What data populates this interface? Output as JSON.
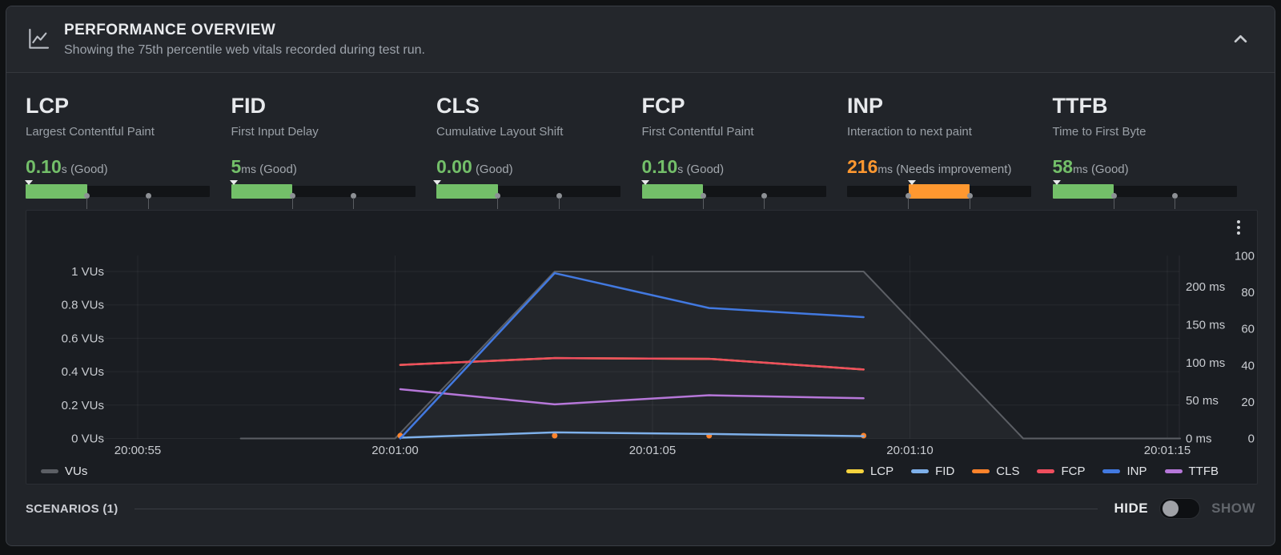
{
  "header": {
    "title": "PERFORMANCE OVERVIEW",
    "subtitle": "Showing the 75th percentile web vitals recorded during test run."
  },
  "colors": {
    "good": "#73bf69",
    "needs_improvement": "#ff9830",
    "vus_line": "#5c5f65",
    "vus_fill": "rgba(255,255,255,0.045)"
  },
  "metrics": [
    {
      "name": "LCP",
      "description": "Largest Contentful Paint",
      "value": "0.10",
      "unit": "s",
      "rating": "(Good)",
      "status": "good",
      "zone": 0,
      "marker_pct": 1.6,
      "ticks": [
        "2.50s",
        "4.00s"
      ]
    },
    {
      "name": "FID",
      "description": "First Input Delay",
      "value": "5",
      "unit": "ms",
      "rating": "(Good)",
      "status": "good",
      "zone": 0,
      "marker_pct": 1.7,
      "ticks": [
        "100ms",
        "300ms"
      ]
    },
    {
      "name": "CLS",
      "description": "Cumulative Layout Shift",
      "value": "0.00",
      "unit": "",
      "rating": "(Good)",
      "status": "good",
      "zone": 0,
      "marker_pct": 0.4,
      "ticks": [
        "0.10",
        "0.25"
      ]
    },
    {
      "name": "FCP",
      "description": "First Contentful Paint",
      "value": "0.10",
      "unit": "s",
      "rating": "(Good)",
      "status": "good",
      "zone": 0,
      "marker_pct": 1.9,
      "ticks": [
        "1.80s",
        "3.00s"
      ]
    },
    {
      "name": "INP",
      "description": "Interaction to next paint",
      "value": "216",
      "unit": "ms",
      "rating": "(Needs improvement)",
      "status": "needs_improvement",
      "zone": 1,
      "marker_pct": 35.1,
      "ticks": [
        "200ms",
        "500ms"
      ]
    },
    {
      "name": "TTFB",
      "description": "Time to First Byte",
      "value": "58",
      "unit": "ms",
      "rating": "(Good)",
      "status": "good",
      "zone": 0,
      "marker_pct": 2.4,
      "ticks": [
        "800ms",
        "1800ms"
      ]
    }
  ],
  "chart_data": {
    "type": "line",
    "x_axis": {
      "labels": [
        "20:00:55",
        "20:01:00",
        "20:01:05",
        "20:01:10",
        "20:01:15"
      ],
      "seconds": [
        55,
        60,
        65,
        70,
        75
      ]
    },
    "left_axis": {
      "title": "VUs",
      "ticks": [
        1,
        0.8,
        0.6,
        0.4,
        0.2,
        0
      ],
      "labels": [
        "1 VUs",
        "0.8 VUs",
        "0.6 VUs",
        "0.4 VUs",
        "0.2 VUs",
        "0 VUs"
      ]
    },
    "right_axis_ms": {
      "ticks": [
        200,
        150,
        100,
        50,
        0
      ],
      "labels": [
        "200 ms",
        "150 ms",
        "100 ms",
        "50 ms",
        "0 ms"
      ]
    },
    "right_axis_score": {
      "ticks": [
        100,
        80,
        60,
        40,
        20,
        0
      ],
      "labels": [
        "100",
        "80",
        "60",
        "40",
        "20",
        "0"
      ]
    },
    "series": [
      {
        "name": "VUs",
        "color": "#5c5f65",
        "axis": "vus",
        "style": "area",
        "x": [
          57,
          60,
          63.1,
          69.1,
          72.2,
          75.25
        ],
        "values": [
          0,
          0,
          1,
          1,
          0,
          0
        ]
      },
      {
        "name": "LCP",
        "color": "#f5d33e",
        "axis": "ms",
        "style": "line",
        "x": [
          60.1,
          63.1,
          66.1,
          69.1
        ],
        "values": [
          97,
          106,
          105,
          91
        ]
      },
      {
        "name": "CLS",
        "color": "#ff832b",
        "axis": "score",
        "style": "points",
        "x": [
          60.1,
          63.1,
          66.1,
          69.1
        ],
        "values": [
          0,
          0,
          0,
          0
        ]
      },
      {
        "name": "FCP",
        "color": "#ef4e5e",
        "axis": "ms",
        "style": "line",
        "x": [
          60.1,
          63.1,
          66.1,
          69.1
        ],
        "values": [
          97,
          106,
          105,
          91
        ]
      },
      {
        "name": "TTFB",
        "color": "#b677d9",
        "axis": "ms",
        "style": "line",
        "x": [
          60.1,
          63.1,
          66.1,
          69.1
        ],
        "values": [
          65,
          45,
          57,
          53
        ]
      },
      {
        "name": "FID",
        "color": "#7eb0ea",
        "axis": "ms",
        "style": "line",
        "x": [
          60.1,
          63.1,
          66.1,
          69.1
        ],
        "values": [
          1,
          8,
          6,
          3
        ]
      },
      {
        "name": "INP",
        "color": "#4279e0",
        "axis": "ms",
        "style": "line",
        "x": [
          60.1,
          63.1,
          66.1,
          69.1
        ],
        "values": [
          0,
          218,
          172,
          160
        ]
      }
    ],
    "legend_left": [
      "VUs"
    ],
    "legend_right": [
      "LCP",
      "FID",
      "CLS",
      "FCP",
      "INP",
      "TTFB"
    ],
    "grid": true,
    "legend_position": "bottom"
  },
  "footer": {
    "scenarios_label": "SCENARIOS (1)",
    "hide_label": "HIDE",
    "show_label": "SHOW",
    "toggle_state": "hide"
  }
}
